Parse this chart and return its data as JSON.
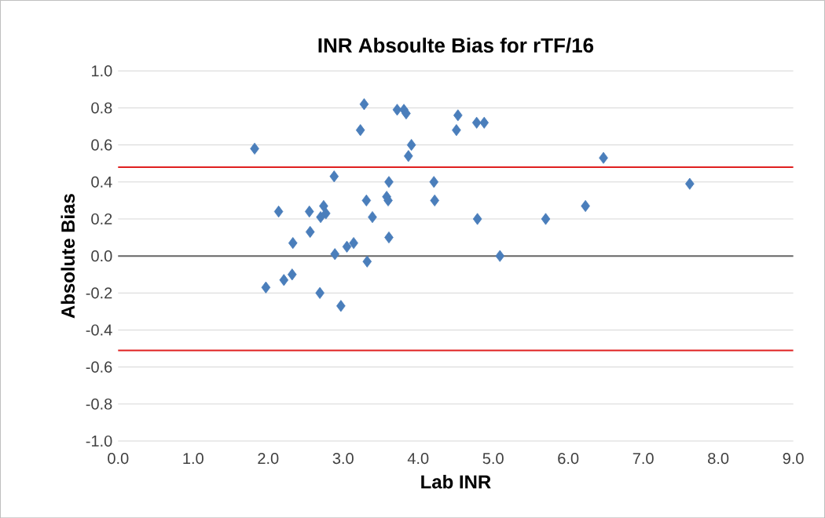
{
  "chart_data": {
    "type": "scatter",
    "title": "INR Absoulte Bias for rTF/16",
    "xlabel": "Lab INR",
    "ylabel": "Absolute Bias",
    "xlim": [
      0,
      9
    ],
    "ylim": [
      -1,
      1
    ],
    "xticks": [
      {
        "value": 0,
        "label": "0.0"
      },
      {
        "value": 1,
        "label": "1.0"
      },
      {
        "value": 2,
        "label": "2.0"
      },
      {
        "value": 3,
        "label": "3.0"
      },
      {
        "value": 4,
        "label": "4.0"
      },
      {
        "value": 5,
        "label": "5.0"
      },
      {
        "value": 6,
        "label": "6.0"
      },
      {
        "value": 7,
        "label": "7.0"
      },
      {
        "value": 8,
        "label": "8.0"
      },
      {
        "value": 9,
        "label": "9.0"
      }
    ],
    "yticks": [
      {
        "value": -1,
        "label": "-1.0"
      },
      {
        "value": -0.8,
        "label": "-0.8"
      },
      {
        "value": -0.6,
        "label": "-0.6"
      },
      {
        "value": -0.4,
        "label": "-0.4"
      },
      {
        "value": -0.2,
        "label": "-0.2"
      },
      {
        "value": 0,
        "label": "0.0"
      },
      {
        "value": 0.2,
        "label": "0.2"
      },
      {
        "value": 0.4,
        "label": "0.4"
      },
      {
        "value": 0.6,
        "label": "0.6"
      },
      {
        "value": 0.8,
        "label": "0.8"
      },
      {
        "value": 1,
        "label": "1.0"
      }
    ],
    "grid": "y",
    "marker": "diamond",
    "series": [
      {
        "color": "#4a7ebb",
        "x": [
          1.82,
          1.97,
          2.14,
          2.21,
          2.32,
          2.33,
          2.55,
          2.56,
          2.7,
          2.74,
          2.77,
          2.69,
          2.88,
          2.89,
          2.97,
          3.05,
          3.14,
          3.23,
          3.28,
          3.31,
          3.32,
          3.39,
          3.58,
          3.61,
          3.6,
          3.61,
          3.72,
          3.81,
          3.84,
          3.87,
          3.91,
          4.21,
          4.22,
          4.53,
          4.51,
          4.78,
          4.88,
          4.79,
          5.09,
          5.7,
          6.23,
          6.47,
          7.62
        ],
        "values": [
          0.58,
          -0.17,
          0.24,
          -0.13,
          -0.1,
          0.07,
          0.24,
          0.13,
          0.21,
          0.27,
          0.23,
          -0.2,
          0.43,
          0.01,
          -0.27,
          0.05,
          0.07,
          0.68,
          0.82,
          0.3,
          -0.03,
          0.21,
          0.32,
          0.4,
          0.3,
          0.1,
          0.79,
          0.79,
          0.77,
          0.54,
          0.6,
          0.4,
          0.3,
          0.76,
          0.68,
          0.72,
          0.72,
          0.2,
          0.0,
          0.2,
          0.27,
          0.53,
          0.39
        ]
      }
    ],
    "ref_lines": [
      {
        "axis": "y",
        "value": 0.48,
        "color": "#e02020"
      },
      {
        "axis": "y",
        "value": -0.51,
        "color": "#e02020"
      }
    ]
  }
}
